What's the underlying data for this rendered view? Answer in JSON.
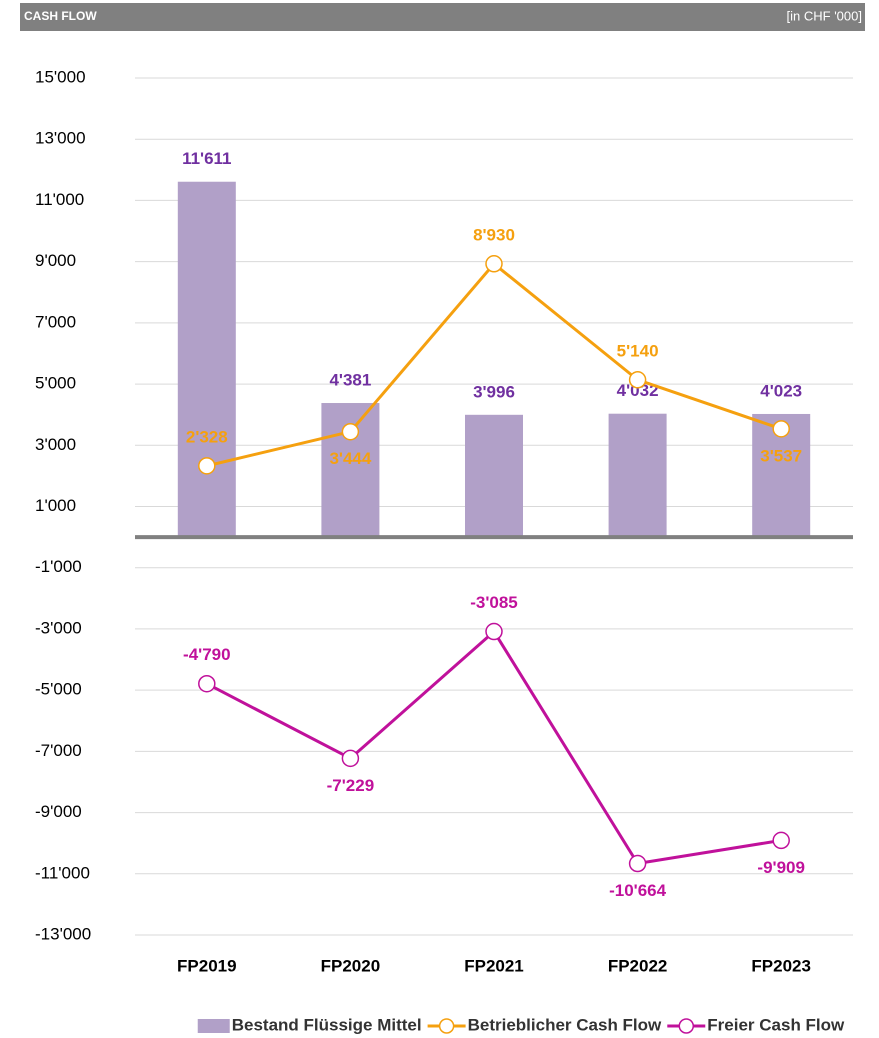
{
  "chart_data": {
    "type": "bar",
    "title": "CASH FLOW",
    "subtitle": "[in CHF '000]",
    "categories": [
      "FP2019",
      "FP2020",
      "FP2021",
      "FP2022",
      "FP2023"
    ],
    "series": [
      {
        "name": "Bestand Flüssige Mittel",
        "type": "bar",
        "color": "#b1a0c8",
        "label_color": "#7030a0",
        "values": [
          11611,
          4381,
          3996,
          4032,
          4023
        ],
        "value_labels": [
          "11'611",
          "4'381",
          "3'996",
          "4'032",
          "4'023"
        ]
      },
      {
        "name": "Betrieblicher Cash Flow",
        "type": "line",
        "color": "#f5a00f",
        "label_color": "#f5a00f",
        "values": [
          2328,
          3444,
          8930,
          5140,
          3537
        ],
        "value_labels": [
          "2'328",
          "3'444",
          "8'930",
          "5'140",
          "3'537"
        ]
      },
      {
        "name": "Freier Cash Flow",
        "type": "line",
        "color": "#c0119b",
        "label_color": "#c0119b",
        "values": [
          -4790,
          -7229,
          -3085,
          -10664,
          -9909
        ],
        "value_labels": [
          "-4'790",
          "-7'229",
          "-3'085",
          "-10'664",
          "-9'909"
        ]
      }
    ],
    "ylim": [
      -13000,
      15000
    ],
    "yticks": [
      {
        "value": 15000,
        "label": "15'000"
      },
      {
        "value": 13000,
        "label": "13'000"
      },
      {
        "value": 11000,
        "label": "11'000"
      },
      {
        "value": 9000,
        "label": "9'000"
      },
      {
        "value": 7000,
        "label": "7'000"
      },
      {
        "value": 5000,
        "label": "5'000"
      },
      {
        "value": 3000,
        "label": "3'000"
      },
      {
        "value": 1000,
        "label": "1'000"
      },
      {
        "value": -1000,
        "label": "-1'000"
      },
      {
        "value": -3000,
        "label": "-3'000"
      },
      {
        "value": -5000,
        "label": "-5'000"
      },
      {
        "value": -7000,
        "label": "-7'000"
      },
      {
        "value": -9000,
        "label": "-9'000"
      },
      {
        "value": -11000,
        "label": "-11'000"
      },
      {
        "value": -13000,
        "label": "-13'000"
      }
    ],
    "grid": true,
    "legend": "bottom"
  }
}
